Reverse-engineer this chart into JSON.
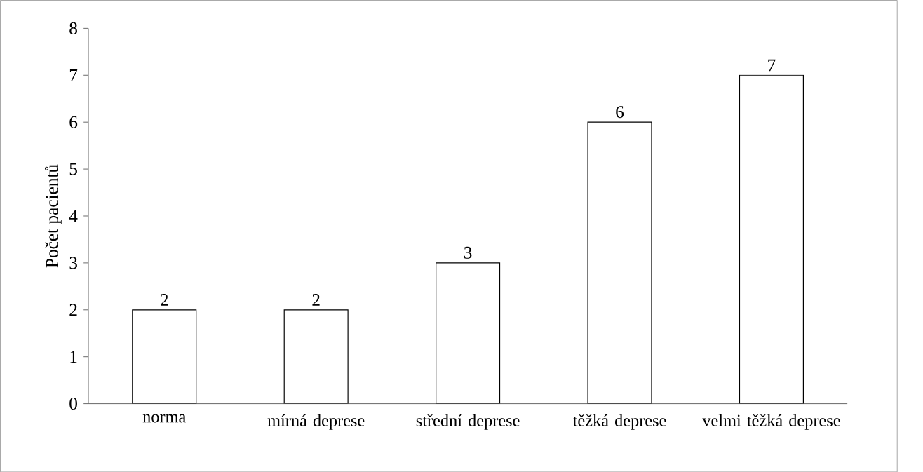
{
  "chart_data": {
    "type": "bar",
    "ylabel": "Počet pacientů",
    "categories": [
      "norma",
      "mírná deprese",
      "střední deprese",
      "těžká deprese",
      "velmi těžká deprese"
    ],
    "values": [
      2,
      2,
      3,
      6,
      7
    ],
    "color": "#ffffff",
    "data_labels": true,
    "ylim": [
      0,
      8
    ],
    "yticks": [
      0,
      1,
      2,
      3,
      4,
      5,
      6,
      7,
      8
    ],
    "grid": false
  }
}
